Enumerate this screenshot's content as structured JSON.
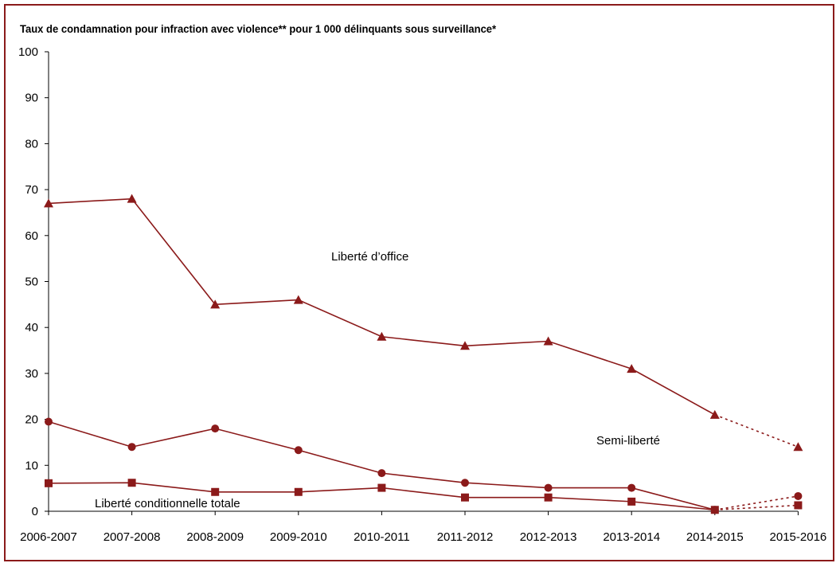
{
  "chart_data": {
    "type": "line",
    "title": "Taux de condamnation pour infraction avec violence** pour 1 000 délinquants sous surveillance*",
    "xlabel": "",
    "ylabel": "",
    "ylim": [
      0,
      100
    ],
    "yticks": [
      0,
      10,
      20,
      30,
      40,
      50,
      60,
      70,
      80,
      90,
      100
    ],
    "categories": [
      "2006-2007",
      "2007-2008",
      "2008-2009",
      "2009-2010",
      "2010-2011",
      "2011-2012",
      "2012-2013",
      "2013-2014",
      "2014-2015",
      "2015-2016"
    ],
    "grid": false,
    "legend": "none",
    "series": [
      {
        "name": "Liberté d’office",
        "marker": "triangle",
        "values": [
          67,
          68,
          45,
          46,
          38,
          36,
          37,
          31,
          21,
          14
        ],
        "dashed_from_index": 8
      },
      {
        "name": "Semi-liberté",
        "marker": "circle",
        "values": [
          19.5,
          14,
          18,
          13.3,
          8.3,
          6.2,
          5.1,
          5.1,
          0.3,
          3.3
        ],
        "dashed_from_index": 8
      },
      {
        "name": "Liberté conditionnelle totale",
        "marker": "square",
        "values": [
          6.1,
          6.2,
          4.2,
          4.2,
          5.1,
          3.0,
          3.0,
          2.1,
          0.3,
          1.3
        ],
        "dashed_from_index": 8
      }
    ],
    "colors": {
      "line": "#8b1a1a",
      "axis": "#000000",
      "frame": "#8b1a1a"
    }
  }
}
